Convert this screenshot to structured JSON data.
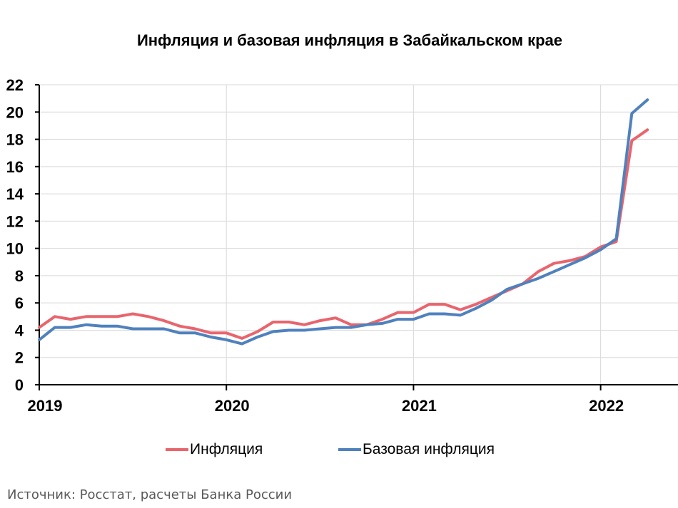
{
  "chart_data": {
    "type": "line",
    "title": "Инфляция и базовая инфляция в Забайкальском крае",
    "xlabel": "",
    "ylabel": "",
    "x_tick_labels": [
      "2019",
      "2020",
      "2021",
      "2022"
    ],
    "y_tick_labels": [
      "0",
      "2",
      "4",
      "6",
      "8",
      "10",
      "12",
      "14",
      "16",
      "18",
      "20",
      "22"
    ],
    "ylim": [
      0,
      22
    ],
    "grid": true,
    "legend_position": "bottom",
    "x": [
      "2019-01",
      "2019-02",
      "2019-03",
      "2019-04",
      "2019-05",
      "2019-06",
      "2019-07",
      "2019-08",
      "2019-09",
      "2019-10",
      "2019-11",
      "2019-12",
      "2020-01",
      "2020-02",
      "2020-03",
      "2020-04",
      "2020-05",
      "2020-06",
      "2020-07",
      "2020-08",
      "2020-09",
      "2020-10",
      "2020-11",
      "2020-12",
      "2021-01",
      "2021-02",
      "2021-03",
      "2021-04",
      "2021-05",
      "2021-06",
      "2021-07",
      "2021-08",
      "2021-09",
      "2021-10",
      "2021-11",
      "2021-12",
      "2022-01",
      "2022-02",
      "2022-03",
      "2022-04"
    ],
    "series": [
      {
        "name": "Инфляция",
        "color": "#e8656d",
        "values": [
          4.2,
          5.0,
          4.8,
          5.0,
          5.0,
          5.0,
          5.2,
          5.0,
          4.7,
          4.3,
          4.1,
          3.8,
          3.8,
          3.4,
          3.9,
          4.6,
          4.6,
          4.4,
          4.7,
          4.9,
          4.4,
          4.4,
          4.8,
          5.3,
          5.3,
          5.9,
          5.9,
          5.5,
          5.9,
          6.4,
          6.9,
          7.4,
          8.3,
          8.9,
          9.1,
          9.4,
          10.1,
          10.5,
          17.9,
          18.7
        ]
      },
      {
        "name": "Базовая инфляция",
        "color": "#4f81bd",
        "values": [
          3.3,
          4.2,
          4.2,
          4.4,
          4.3,
          4.3,
          4.1,
          4.1,
          4.1,
          3.8,
          3.8,
          3.5,
          3.3,
          3.0,
          3.5,
          3.9,
          4.0,
          4.0,
          4.1,
          4.2,
          4.2,
          4.4,
          4.5,
          4.8,
          4.8,
          5.2,
          5.2,
          5.1,
          5.6,
          6.2,
          7.0,
          7.4,
          7.8,
          8.3,
          8.8,
          9.3,
          9.9,
          10.7,
          19.9,
          20.9
        ]
      }
    ]
  },
  "source_note": "Источник: Росстат, расчеты Банка России"
}
